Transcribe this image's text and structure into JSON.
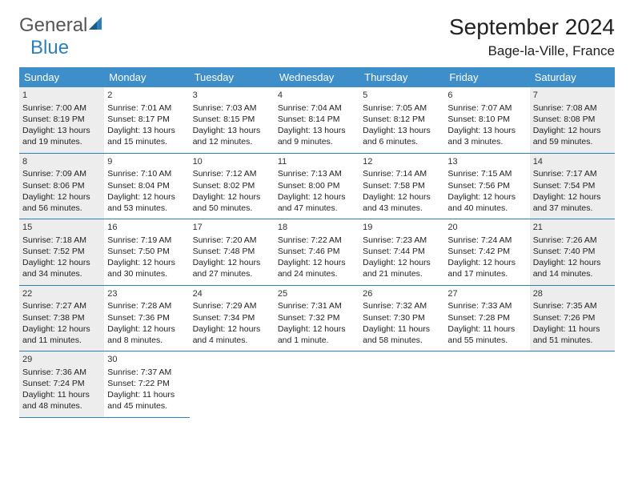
{
  "logo": {
    "text1": "General",
    "text2": "Blue"
  },
  "title": "September 2024",
  "location": "Bage-la-Ville, France",
  "colors": {
    "header_bg": "#3d8ec9",
    "header_text": "#ffffff",
    "border": "#2c7fb8",
    "shaded": "#ededed",
    "bg": "#ffffff"
  },
  "days_of_week": [
    "Sunday",
    "Monday",
    "Tuesday",
    "Wednesday",
    "Thursday",
    "Friday",
    "Saturday"
  ],
  "weeks": [
    [
      {
        "num": "1",
        "shaded": true,
        "sunrise": "Sunrise: 7:00 AM",
        "sunset": "Sunset: 8:19 PM",
        "day1": "Daylight: 13 hours",
        "day2": "and 19 minutes."
      },
      {
        "num": "2",
        "shaded": false,
        "sunrise": "Sunrise: 7:01 AM",
        "sunset": "Sunset: 8:17 PM",
        "day1": "Daylight: 13 hours",
        "day2": "and 15 minutes."
      },
      {
        "num": "3",
        "shaded": false,
        "sunrise": "Sunrise: 7:03 AM",
        "sunset": "Sunset: 8:15 PM",
        "day1": "Daylight: 13 hours",
        "day2": "and 12 minutes."
      },
      {
        "num": "4",
        "shaded": false,
        "sunrise": "Sunrise: 7:04 AM",
        "sunset": "Sunset: 8:14 PM",
        "day1": "Daylight: 13 hours",
        "day2": "and 9 minutes."
      },
      {
        "num": "5",
        "shaded": false,
        "sunrise": "Sunrise: 7:05 AM",
        "sunset": "Sunset: 8:12 PM",
        "day1": "Daylight: 13 hours",
        "day2": "and 6 minutes."
      },
      {
        "num": "6",
        "shaded": false,
        "sunrise": "Sunrise: 7:07 AM",
        "sunset": "Sunset: 8:10 PM",
        "day1": "Daylight: 13 hours",
        "day2": "and 3 minutes."
      },
      {
        "num": "7",
        "shaded": true,
        "sunrise": "Sunrise: 7:08 AM",
        "sunset": "Sunset: 8:08 PM",
        "day1": "Daylight: 12 hours",
        "day2": "and 59 minutes."
      }
    ],
    [
      {
        "num": "8",
        "shaded": true,
        "sunrise": "Sunrise: 7:09 AM",
        "sunset": "Sunset: 8:06 PM",
        "day1": "Daylight: 12 hours",
        "day2": "and 56 minutes."
      },
      {
        "num": "9",
        "shaded": false,
        "sunrise": "Sunrise: 7:10 AM",
        "sunset": "Sunset: 8:04 PM",
        "day1": "Daylight: 12 hours",
        "day2": "and 53 minutes."
      },
      {
        "num": "10",
        "shaded": false,
        "sunrise": "Sunrise: 7:12 AM",
        "sunset": "Sunset: 8:02 PM",
        "day1": "Daylight: 12 hours",
        "day2": "and 50 minutes."
      },
      {
        "num": "11",
        "shaded": false,
        "sunrise": "Sunrise: 7:13 AM",
        "sunset": "Sunset: 8:00 PM",
        "day1": "Daylight: 12 hours",
        "day2": "and 47 minutes."
      },
      {
        "num": "12",
        "shaded": false,
        "sunrise": "Sunrise: 7:14 AM",
        "sunset": "Sunset: 7:58 PM",
        "day1": "Daylight: 12 hours",
        "day2": "and 43 minutes."
      },
      {
        "num": "13",
        "shaded": false,
        "sunrise": "Sunrise: 7:15 AM",
        "sunset": "Sunset: 7:56 PM",
        "day1": "Daylight: 12 hours",
        "day2": "and 40 minutes."
      },
      {
        "num": "14",
        "shaded": true,
        "sunrise": "Sunrise: 7:17 AM",
        "sunset": "Sunset: 7:54 PM",
        "day1": "Daylight: 12 hours",
        "day2": "and 37 minutes."
      }
    ],
    [
      {
        "num": "15",
        "shaded": true,
        "sunrise": "Sunrise: 7:18 AM",
        "sunset": "Sunset: 7:52 PM",
        "day1": "Daylight: 12 hours",
        "day2": "and 34 minutes."
      },
      {
        "num": "16",
        "shaded": false,
        "sunrise": "Sunrise: 7:19 AM",
        "sunset": "Sunset: 7:50 PM",
        "day1": "Daylight: 12 hours",
        "day2": "and 30 minutes."
      },
      {
        "num": "17",
        "shaded": false,
        "sunrise": "Sunrise: 7:20 AM",
        "sunset": "Sunset: 7:48 PM",
        "day1": "Daylight: 12 hours",
        "day2": "and 27 minutes."
      },
      {
        "num": "18",
        "shaded": false,
        "sunrise": "Sunrise: 7:22 AM",
        "sunset": "Sunset: 7:46 PM",
        "day1": "Daylight: 12 hours",
        "day2": "and 24 minutes."
      },
      {
        "num": "19",
        "shaded": false,
        "sunrise": "Sunrise: 7:23 AM",
        "sunset": "Sunset: 7:44 PM",
        "day1": "Daylight: 12 hours",
        "day2": "and 21 minutes."
      },
      {
        "num": "20",
        "shaded": false,
        "sunrise": "Sunrise: 7:24 AM",
        "sunset": "Sunset: 7:42 PM",
        "day1": "Daylight: 12 hours",
        "day2": "and 17 minutes."
      },
      {
        "num": "21",
        "shaded": true,
        "sunrise": "Sunrise: 7:26 AM",
        "sunset": "Sunset: 7:40 PM",
        "day1": "Daylight: 12 hours",
        "day2": "and 14 minutes."
      }
    ],
    [
      {
        "num": "22",
        "shaded": true,
        "sunrise": "Sunrise: 7:27 AM",
        "sunset": "Sunset: 7:38 PM",
        "day1": "Daylight: 12 hours",
        "day2": "and 11 minutes."
      },
      {
        "num": "23",
        "shaded": false,
        "sunrise": "Sunrise: 7:28 AM",
        "sunset": "Sunset: 7:36 PM",
        "day1": "Daylight: 12 hours",
        "day2": "and 8 minutes."
      },
      {
        "num": "24",
        "shaded": false,
        "sunrise": "Sunrise: 7:29 AM",
        "sunset": "Sunset: 7:34 PM",
        "day1": "Daylight: 12 hours",
        "day2": "and 4 minutes."
      },
      {
        "num": "25",
        "shaded": false,
        "sunrise": "Sunrise: 7:31 AM",
        "sunset": "Sunset: 7:32 PM",
        "day1": "Daylight: 12 hours",
        "day2": "and 1 minute."
      },
      {
        "num": "26",
        "shaded": false,
        "sunrise": "Sunrise: 7:32 AM",
        "sunset": "Sunset: 7:30 PM",
        "day1": "Daylight: 11 hours",
        "day2": "and 58 minutes."
      },
      {
        "num": "27",
        "shaded": false,
        "sunrise": "Sunrise: 7:33 AM",
        "sunset": "Sunset: 7:28 PM",
        "day1": "Daylight: 11 hours",
        "day2": "and 55 minutes."
      },
      {
        "num": "28",
        "shaded": true,
        "sunrise": "Sunrise: 7:35 AM",
        "sunset": "Sunset: 7:26 PM",
        "day1": "Daylight: 11 hours",
        "day2": "and 51 minutes."
      }
    ],
    [
      {
        "num": "29",
        "shaded": true,
        "sunrise": "Sunrise: 7:36 AM",
        "sunset": "Sunset: 7:24 PM",
        "day1": "Daylight: 11 hours",
        "day2": "and 48 minutes."
      },
      {
        "num": "30",
        "shaded": false,
        "sunrise": "Sunrise: 7:37 AM",
        "sunset": "Sunset: 7:22 PM",
        "day1": "Daylight: 11 hours",
        "day2": "and 45 minutes."
      },
      null,
      null,
      null,
      null,
      null
    ]
  ]
}
